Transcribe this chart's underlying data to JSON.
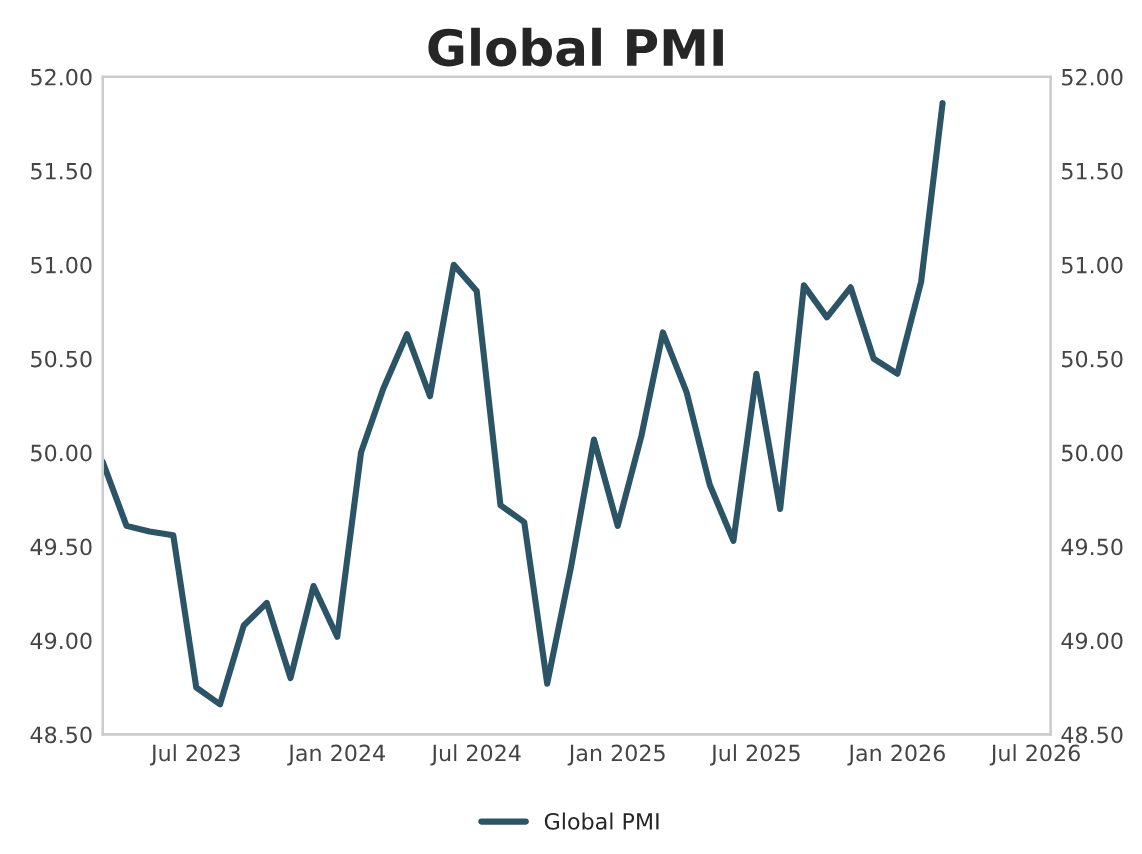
{
  "chart_data": {
    "type": "line",
    "title": "Global PMI",
    "x": [
      "2023-03",
      "2023-04",
      "2023-05",
      "2023-06",
      "2023-07",
      "2023-08",
      "2023-09",
      "2023-10",
      "2023-11",
      "2023-12",
      "2024-01",
      "2024-02",
      "2024-03",
      "2024-04",
      "2024-05",
      "2024-06",
      "2024-07",
      "2024-08",
      "2024-09",
      "2024-10",
      "2024-11",
      "2024-12",
      "2025-01",
      "2025-02",
      "2025-03",
      "2025-04",
      "2025-05",
      "2025-06",
      "2025-07",
      "2025-08",
      "2025-09",
      "2025-10",
      "2025-11",
      "2025-12",
      "2026-01",
      "2026-02",
      "2026-03"
    ],
    "series": [
      {
        "name": "Global PMI",
        "color": "#2b5566",
        "values": [
          49.95,
          49.61,
          49.58,
          49.56,
          48.75,
          48.66,
          49.08,
          49.2,
          48.8,
          49.29,
          49.02,
          50.0,
          50.34,
          50.63,
          50.3,
          51.0,
          50.86,
          49.72,
          49.63,
          48.77,
          49.39,
          50.07,
          49.61,
          50.09,
          50.64,
          50.32,
          49.83,
          49.53,
          50.42,
          49.7,
          50.89,
          50.72,
          50.88,
          50.5,
          50.42,
          50.91,
          51.86
        ]
      }
    ],
    "xlim": [
      "2023-03",
      "2026-07-20"
    ],
    "xticks": [
      {
        "value": "2023-07",
        "label": "Jul 2023"
      },
      {
        "value": "2024-01",
        "label": "Jan 2024"
      },
      {
        "value": "2024-07",
        "label": "Jul 2024"
      },
      {
        "value": "2025-01",
        "label": "Jan 2025"
      },
      {
        "value": "2025-07",
        "label": "Jul 2025"
      },
      {
        "value": "2026-01",
        "label": "Jan 2026"
      },
      {
        "value": "2026-07",
        "label": "Jul 2026"
      }
    ],
    "ylim": [
      48.5,
      52
    ],
    "yticks": [
      {
        "value": 48.5,
        "label": "48.50"
      },
      {
        "value": 49,
        "label": "49.00"
      },
      {
        "value": 49.5,
        "label": "49.50"
      },
      {
        "value": 50,
        "label": "50.00"
      },
      {
        "value": 50.5,
        "label": "50.50"
      },
      {
        "value": 51,
        "label": "51.00"
      },
      {
        "value": 51.5,
        "label": "51.50"
      },
      {
        "value": 52,
        "label": "52.00"
      }
    ],
    "y2lim": [
      48.5,
      52
    ],
    "y2ticks": [
      {
        "value": 48.5,
        "label": "48.50"
      },
      {
        "value": 49,
        "label": "49.00"
      },
      {
        "value": 49.5,
        "label": "49.50"
      },
      {
        "value": 50,
        "label": "50.00"
      },
      {
        "value": 50.5,
        "label": "50.50"
      },
      {
        "value": 51,
        "label": "51.00"
      },
      {
        "value": 51.5,
        "label": "51.50"
      },
      {
        "value": 52,
        "label": "52.00"
      }
    ],
    "grid": false,
    "legend": "bottom",
    "marker": "none",
    "line_style": "solid"
  }
}
